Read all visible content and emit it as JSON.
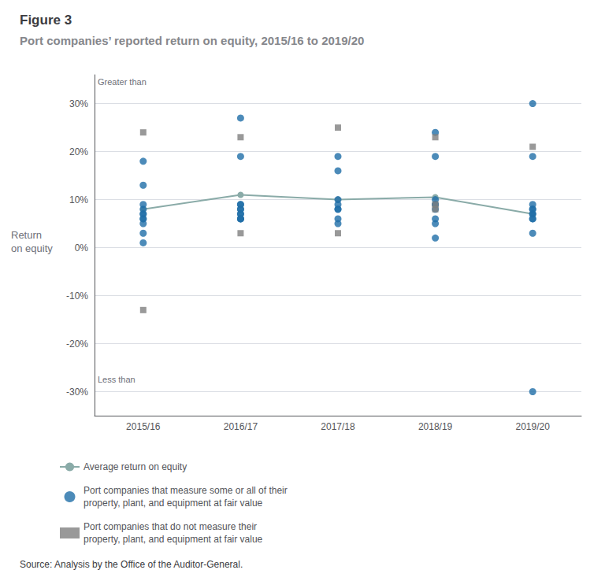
{
  "chart_data": {
    "type": "scatter",
    "title": "Figure 3",
    "subtitle": "Port companies’ reported return on equity, 2015/16 to 2019/20",
    "source": "Source: Analysis by the Office of the Auditor-General.",
    "y_label": "Return\non equity",
    "categories": [
      "2015/16",
      "2016/17",
      "2017/18",
      "2018/19",
      "2019/20"
    ],
    "series": [
      {
        "name": "Average return on equity",
        "type": "line",
        "marker": "circle",
        "color": "#8AABA8",
        "values": [
          8.0,
          11.0,
          10.0,
          10.5,
          7.0
        ]
      },
      {
        "name": "Port companies that measure some or all of their\nproperty, plant, and equipment at fair value",
        "type": "scatter",
        "marker": "circle",
        "color": "#1F6EA8",
        "values": [
          [
            18,
            13,
            9,
            8,
            7,
            7,
            6,
            6,
            5,
            3,
            1
          ],
          [
            27,
            19,
            9,
            9,
            8,
            8,
            7,
            7,
            6,
            6,
            6
          ],
          [
            19,
            16,
            10,
            9,
            8,
            8,
            6,
            5
          ],
          [
            24,
            19,
            10,
            9,
            9,
            8,
            6,
            5,
            2
          ],
          [
            30,
            19,
            9,
            8,
            8,
            7,
            7,
            6,
            6,
            3,
            -30
          ]
        ]
      },
      {
        "name": "Port companies that do not measure their\nproperty, plant, and equipment at fair value",
        "type": "scatter",
        "marker": "square",
        "color": "#808080",
        "values": [
          [
            24,
            -13
          ],
          [
            23,
            3
          ],
          [
            25,
            3
          ],
          [
            23,
            9,
            8
          ],
          [
            21
          ]
        ]
      }
    ],
    "ylim": [
      -35,
      36
    ],
    "yticks": [
      {
        "value": -30,
        "label": "-30%"
      },
      {
        "value": -20,
        "label": "-20%"
      },
      {
        "value": -10,
        "label": "-10%"
      },
      {
        "value": 0,
        "label": "0%"
      },
      {
        "value": 10,
        "label": "10%"
      },
      {
        "value": 20,
        "label": "20%"
      },
      {
        "value": 30,
        "label": "30%"
      }
    ],
    "grid": true,
    "legend": "bottom",
    "annotations": [
      {
        "text": "Greater than",
        "y": 33.5
      },
      {
        "text": "Less than",
        "y": -28.5
      }
    ]
  }
}
